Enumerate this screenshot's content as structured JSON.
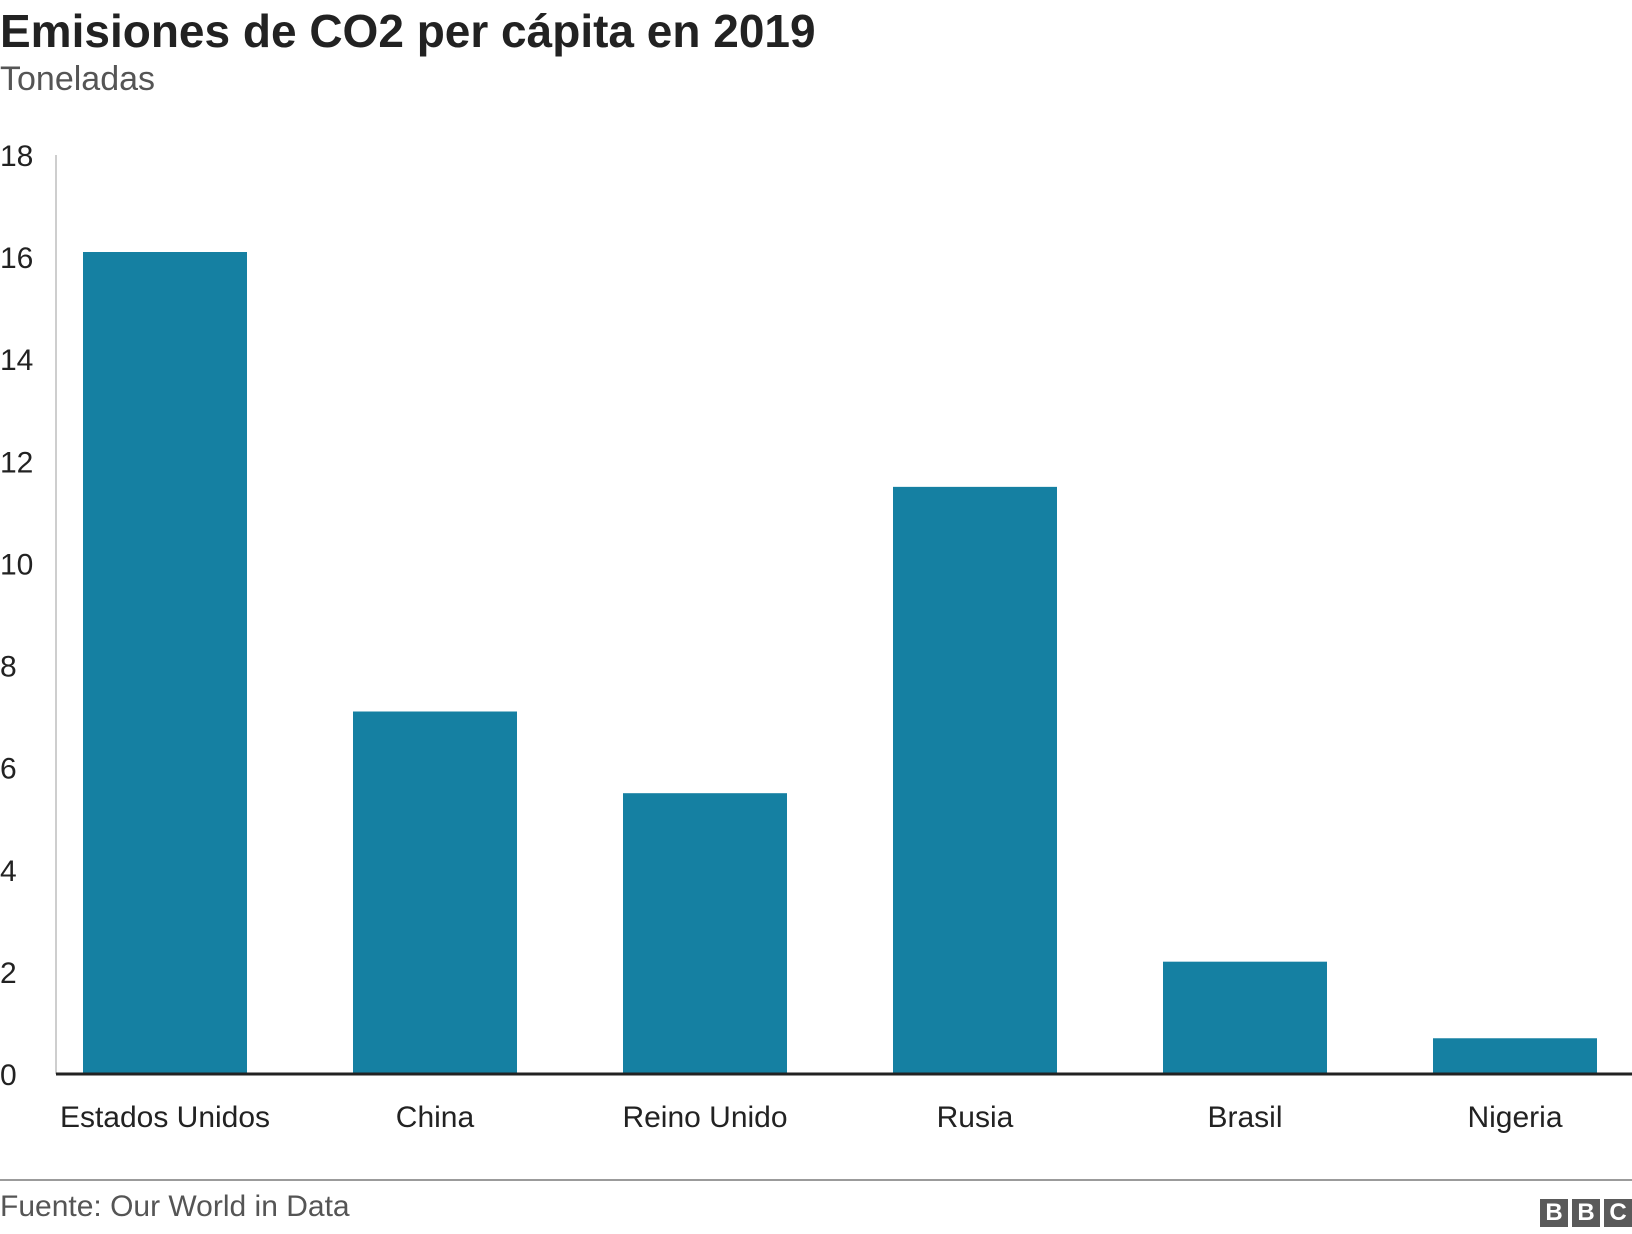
{
  "header": {
    "title": "Emisiones de CO2 per cápita en 2019",
    "subtitle": "Toneladas"
  },
  "footer": {
    "source": "Fuente: Our World in Data",
    "logo_letters": [
      "B",
      "B",
      "C"
    ]
  },
  "colors": {
    "bar": "#1580a2",
    "axis": "#222222",
    "text": "#222222"
  },
  "chart_data": {
    "type": "bar",
    "title": "Emisiones de CO2 per cápita en 2019",
    "subtitle": "Toneladas",
    "xlabel": "",
    "ylabel": "",
    "categories": [
      "Estados Unidos",
      "China",
      "Reino Unido",
      "Rusia",
      "Brasil",
      "Nigeria"
    ],
    "values": [
      16.1,
      7.1,
      5.5,
      11.5,
      2.2,
      0.7
    ],
    "ylim": [
      0,
      18
    ],
    "yticks": [
      0,
      2,
      4,
      6,
      8,
      10,
      12,
      14,
      16,
      18
    ],
    "grid": false,
    "legend": "none"
  }
}
